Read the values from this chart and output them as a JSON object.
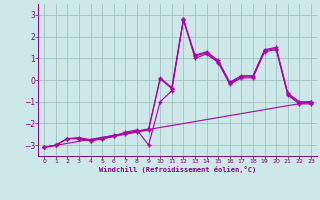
{
  "background_color": "#cce8e8",
  "line_color": "#aa00aa",
  "grid_color": "#99bbbb",
  "xlabel": "Windchill (Refroidissement éolien,°C)",
  "xlim": [
    -0.5,
    23.5
  ],
  "ylim": [
    -3.5,
    3.5
  ],
  "yticks": [
    -3,
    -2,
    -1,
    0,
    1,
    2,
    3
  ],
  "xticks": [
    0,
    1,
    2,
    3,
    4,
    5,
    6,
    7,
    8,
    9,
    10,
    11,
    12,
    13,
    14,
    15,
    16,
    17,
    18,
    19,
    20,
    21,
    22,
    23
  ],
  "series1": [
    [
      0,
      -3.1
    ],
    [
      1,
      -3.0
    ],
    [
      2,
      -2.7
    ],
    [
      3,
      -2.7
    ],
    [
      4,
      -2.8
    ],
    [
      5,
      -2.7
    ],
    [
      6,
      -2.6
    ],
    [
      7,
      -2.4
    ],
    [
      8,
      -2.3
    ],
    [
      9,
      -3.0
    ],
    [
      10,
      -1.0
    ],
    [
      11,
      -0.5
    ],
    [
      12,
      2.8
    ],
    [
      13,
      1.0
    ],
    [
      14,
      1.2
    ],
    [
      15,
      0.8
    ],
    [
      16,
      -0.2
    ],
    [
      17,
      0.1
    ],
    [
      18,
      0.1
    ],
    [
      19,
      1.3
    ],
    [
      20,
      1.4
    ],
    [
      21,
      -0.7
    ],
    [
      22,
      -1.1
    ],
    [
      23,
      -1.1
    ]
  ],
  "series2": [
    [
      0,
      -3.1
    ],
    [
      1,
      -3.0
    ],
    [
      2,
      -2.7
    ],
    [
      3,
      -2.7
    ],
    [
      4,
      -2.8
    ],
    [
      5,
      -2.7
    ],
    [
      6,
      -2.6
    ],
    [
      7,
      -2.5
    ],
    [
      8,
      -2.4
    ],
    [
      9,
      -2.3
    ],
    [
      10,
      0.05
    ],
    [
      11,
      -0.4
    ],
    [
      12,
      2.75
    ],
    [
      13,
      1.1
    ],
    [
      14,
      1.25
    ],
    [
      15,
      0.85
    ],
    [
      16,
      -0.15
    ],
    [
      17,
      0.15
    ],
    [
      18,
      0.15
    ],
    [
      19,
      1.35
    ],
    [
      20,
      1.45
    ],
    [
      21,
      -0.65
    ],
    [
      22,
      -1.05
    ],
    [
      23,
      -1.05
    ]
  ],
  "series3": [
    [
      0,
      -3.1
    ],
    [
      1,
      -3.0
    ],
    [
      2,
      -2.7
    ],
    [
      3,
      -2.65
    ],
    [
      4,
      -2.75
    ],
    [
      5,
      -2.65
    ],
    [
      6,
      -2.55
    ],
    [
      7,
      -2.45
    ],
    [
      8,
      -2.35
    ],
    [
      9,
      -2.25
    ],
    [
      10,
      0.1
    ],
    [
      11,
      -0.35
    ],
    [
      12,
      2.8
    ],
    [
      13,
      1.15
    ],
    [
      14,
      1.3
    ],
    [
      15,
      0.9
    ],
    [
      16,
      -0.1
    ],
    [
      17,
      0.2
    ],
    [
      18,
      0.2
    ],
    [
      19,
      1.4
    ],
    [
      20,
      1.5
    ],
    [
      21,
      -0.6
    ],
    [
      22,
      -1.0
    ],
    [
      23,
      -1.0
    ]
  ],
  "line_straight": [
    [
      0,
      -3.1
    ],
    [
      23,
      -1.0
    ]
  ]
}
